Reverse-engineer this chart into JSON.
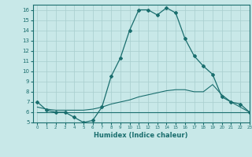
{
  "xlabel": "Humidex (Indice chaleur)",
  "bg_color": "#c8e8e8",
  "line_color": "#1a6e6e",
  "grid_color": "#a8cece",
  "xlim": [
    -0.5,
    23
  ],
  "ylim": [
    5,
    16.5
  ],
  "yticks": [
    5,
    6,
    7,
    8,
    9,
    10,
    11,
    12,
    13,
    14,
    15,
    16
  ],
  "xticks": [
    0,
    1,
    2,
    3,
    4,
    5,
    6,
    7,
    8,
    9,
    10,
    11,
    12,
    13,
    14,
    15,
    16,
    17,
    18,
    19,
    20,
    21,
    22,
    23
  ],
  "series1_x": [
    0,
    1,
    2,
    3,
    4,
    5,
    6,
    7,
    8,
    9,
    10,
    11,
    12,
    13,
    14,
    15,
    16,
    17,
    18,
    19,
    20,
    21,
    22,
    23
  ],
  "series1_y": [
    7.0,
    6.2,
    6.0,
    6.0,
    5.5,
    5.0,
    5.2,
    6.5,
    9.5,
    11.3,
    14.0,
    16.0,
    16.0,
    15.5,
    16.2,
    15.7,
    13.2,
    11.5,
    10.5,
    9.7,
    7.5,
    7.0,
    6.8,
    6.0
  ],
  "series2_x": [
    0,
    1,
    2,
    3,
    4,
    5,
    6,
    7,
    8,
    9,
    10,
    11,
    12,
    13,
    14,
    15,
    16,
    17,
    18,
    19,
    20,
    21,
    22,
    23
  ],
  "series2_y": [
    6.0,
    6.0,
    6.0,
    6.0,
    6.0,
    6.0,
    6.0,
    6.0,
    6.0,
    6.0,
    6.0,
    6.0,
    6.0,
    6.0,
    6.0,
    6.0,
    6.0,
    6.0,
    6.0,
    6.0,
    6.0,
    6.0,
    6.0,
    6.0
  ],
  "series3_x": [
    0,
    1,
    2,
    3,
    4,
    5,
    6,
    7,
    8,
    9,
    10,
    11,
    12,
    13,
    14,
    15,
    16,
    17,
    18,
    19,
    20,
    21,
    22,
    23
  ],
  "series3_y": [
    6.5,
    6.3,
    6.2,
    6.2,
    6.2,
    6.2,
    6.3,
    6.5,
    6.8,
    7.0,
    7.2,
    7.5,
    7.7,
    7.9,
    8.1,
    8.2,
    8.2,
    8.0,
    8.0,
    8.7,
    7.7,
    7.0,
    6.5,
    6.0
  ]
}
